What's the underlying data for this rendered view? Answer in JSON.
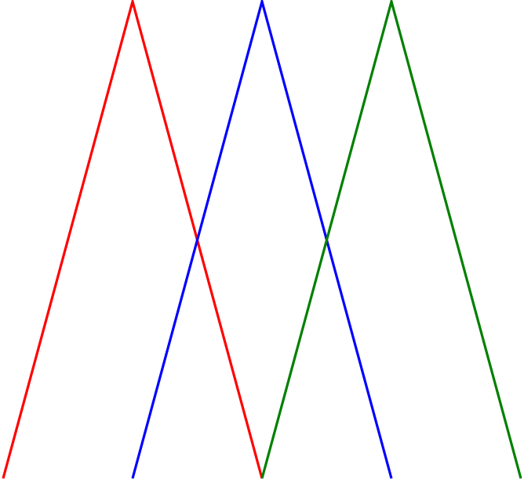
{
  "chart_data": {
    "type": "line",
    "title": "",
    "xlabel": "",
    "ylabel": "",
    "xlim": [
      0,
      4
    ],
    "ylim": [
      0,
      1
    ],
    "grid": false,
    "axes_visible": false,
    "legend": "none",
    "series": [
      {
        "color": "#ff0000",
        "x": [
          0,
          1,
          2
        ],
        "y": [
          0,
          1,
          0
        ]
      },
      {
        "color": "#0000ff",
        "x": [
          1,
          2,
          3
        ],
        "y": [
          0,
          1,
          0
        ]
      },
      {
        "color": "#008000",
        "x": [
          2,
          3,
          4
        ],
        "y": [
          0,
          1,
          0
        ]
      }
    ]
  }
}
